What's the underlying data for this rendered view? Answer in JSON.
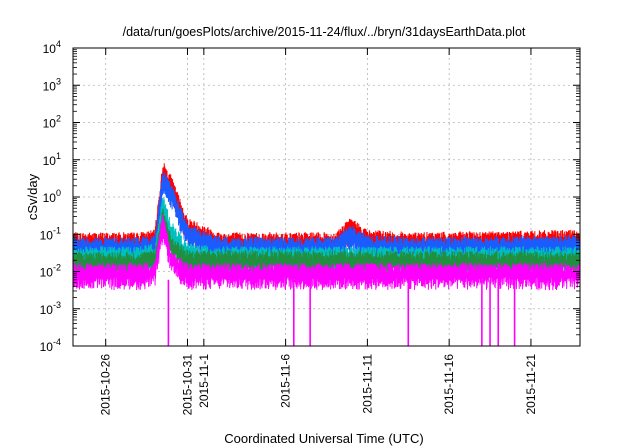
{
  "chart_data": {
    "type": "line",
    "title": "/data/run/goesPlots/archive/2015-11-24/flux/../bryn/31daysEarthData.plot",
    "xlabel": "Coordinated Universal Time (UTC)",
    "ylabel": "cSv/day",
    "yscale": "log",
    "ylim": [
      0.0001,
      10000
    ],
    "xlim": [
      "2015-10-24T00:00",
      "2015-11-24T00:00"
    ],
    "grid": true,
    "ytick_exponents": [
      -4,
      -3,
      -2,
      -1,
      0,
      1,
      2,
      3,
      4
    ],
    "xticks": [
      {
        "date": "2015-10-26",
        "label": "2015-10-26"
      },
      {
        "date": "2015-10-31",
        "label": "2015-10-31"
      },
      {
        "date": "2015-11-01",
        "label": "2015-11-1"
      },
      {
        "date": "2015-11-06",
        "label": "2015-11-6"
      },
      {
        "date": "2015-11-11",
        "label": "2015-11-11"
      },
      {
        "date": "2015-11-16",
        "label": "2015-11-16"
      },
      {
        "date": "2015-11-21",
        "label": "2015-11-21"
      }
    ],
    "series": [
      {
        "color": "#ff0000",
        "x": [
          "2015-10-24",
          "2015-10-28",
          "2015-10-29",
          "2015-10-29T12:00",
          "2015-10-30",
          "2015-10-31",
          "2015-11-02",
          "2015-11-09",
          "2015-11-10",
          "2015-11-11",
          "2015-11-14",
          "2015-11-24"
        ],
        "y": [
          0.06,
          0.06,
          0.07,
          5,
          2,
          0.15,
          0.06,
          0.06,
          0.15,
          0.07,
          0.06,
          0.07
        ]
      },
      {
        "color": "#1a5cff",
        "x": [
          "2015-10-24",
          "2015-10-28",
          "2015-10-29",
          "2015-10-29T12:00",
          "2015-10-30",
          "2015-10-31",
          "2015-11-02",
          "2015-11-09",
          "2015-11-10",
          "2015-11-11",
          "2015-11-14",
          "2015-11-24"
        ],
        "y": [
          0.045,
          0.045,
          0.05,
          3,
          1.3,
          0.1,
          0.045,
          0.045,
          0.1,
          0.05,
          0.045,
          0.05
        ]
      },
      {
        "color": "#00bfbf",
        "x": [
          "2015-10-24",
          "2015-10-28",
          "2015-10-29",
          "2015-10-29T12:00",
          "2015-10-30",
          "2015-10-31",
          "2015-11-02",
          "2015-11-24"
        ],
        "y": [
          0.025,
          0.025,
          0.03,
          0.6,
          0.12,
          0.03,
          0.025,
          0.025
        ]
      },
      {
        "color": "#209040",
        "x": [
          "2015-10-24",
          "2015-10-28",
          "2015-10-29",
          "2015-10-29T12:00",
          "2015-10-30",
          "2015-10-31",
          "2015-11-24"
        ],
        "y": [
          0.018,
          0.018,
          0.02,
          0.3,
          0.05,
          0.02,
          0.018
        ]
      },
      {
        "color": "#ff00ff",
        "x": [
          "2015-10-24",
          "2015-10-28",
          "2015-10-29",
          "2015-10-29T12:00",
          "2015-10-30",
          "2015-10-31",
          "2015-11-24"
        ],
        "y": [
          0.009,
          0.009,
          0.01,
          0.2,
          0.02,
          0.009,
          0.009
        ]
      }
    ],
    "gaps": [
      "2015-10-29T20:00",
      "2015-11-06T12:00",
      "2015-11-07T12:00",
      "2015-11-13T12:00",
      "2015-11-18",
      "2015-11-18T12:00",
      "2015-11-19",
      "2015-11-20"
    ]
  }
}
